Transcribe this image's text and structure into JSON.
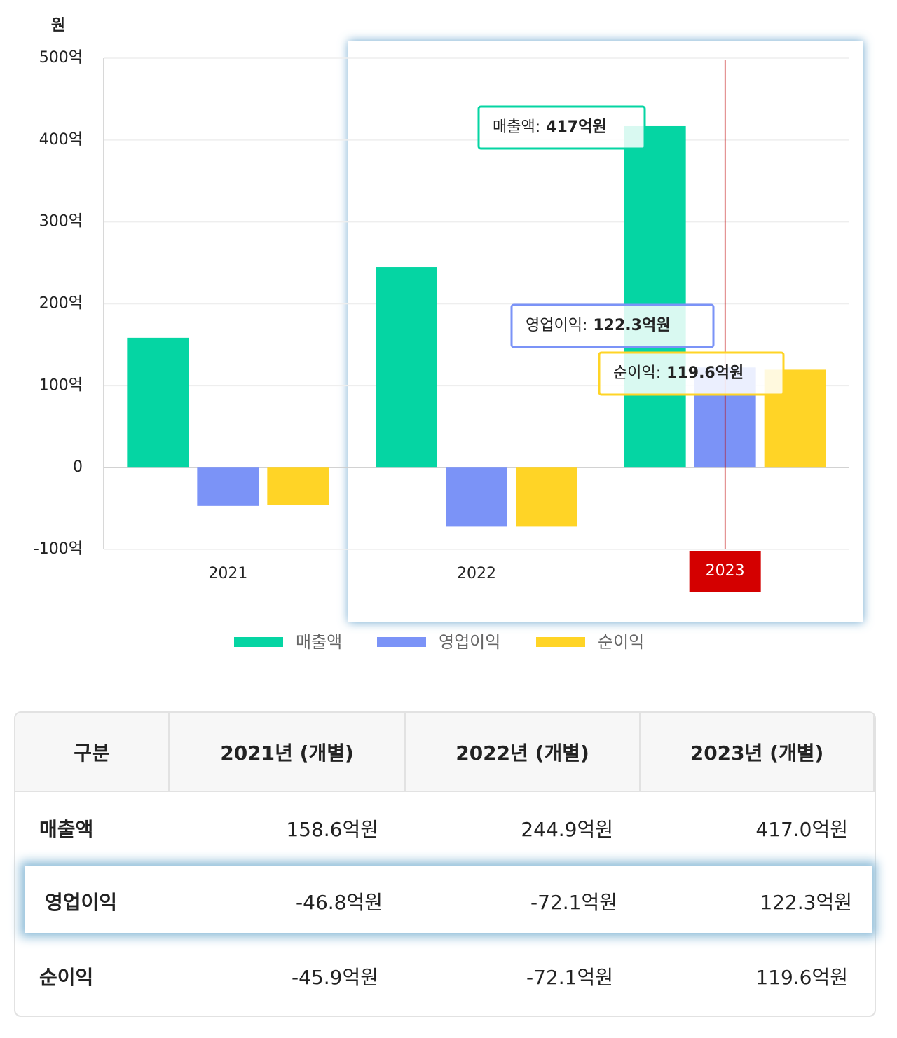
{
  "chart_data": {
    "type": "bar",
    "y_label": "원",
    "categories": [
      "2021",
      "2022",
      "2023"
    ],
    "series": [
      {
        "name": "매출액",
        "color": "#05d5a3",
        "values": [
          15860000000,
          24490000000,
          41700000000
        ],
        "value_labels": [
          null,
          null,
          "417억원"
        ]
      },
      {
        "name": "영업이익",
        "color": "#7b93f7",
        "values": [
          -4680000000,
          -7210000000,
          12230000000
        ],
        "value_labels": [
          null,
          null,
          "122.3억원"
        ]
      },
      {
        "name": "순이익",
        "color": "#ffd426",
        "values": [
          -4590000000,
          -7210000000,
          11960000000
        ],
        "value_labels": [
          null,
          null,
          "119.6억원"
        ]
      }
    ],
    "tooltip_labels": [
      "매출액:",
      "영업이익:",
      "순이익:"
    ],
    "ylim": [
      -10000000000,
      50000000000
    ],
    "yticks": [
      {
        "value": -10000000000,
        "label": "-100억"
      },
      0,
      {
        "value": 10000000000,
        "label": "100억"
      },
      {
        "value": 20000000000,
        "label": "200억"
      },
      {
        "value": 30000000000,
        "label": "300억"
      },
      {
        "value": 40000000000,
        "label": "400억"
      },
      {
        "value": 50000000000,
        "label": "500억"
      }
    ],
    "grid": true,
    "legend": "bottom"
  },
  "table": {
    "header": [
      "구분",
      "2021년 (개별)",
      "2022년 (개별)",
      "2023년 (개별)"
    ],
    "rows": [
      [
        "매출액",
        "158.6억원",
        "244.9억원",
        "417.0억원"
      ],
      [
        "영업이익",
        "-46.8억원",
        "-72.1억원",
        "122.3억원"
      ],
      [
        "순이익",
        "-45.9억원",
        "-72.1억원",
        "119.6억원"
      ]
    ]
  }
}
